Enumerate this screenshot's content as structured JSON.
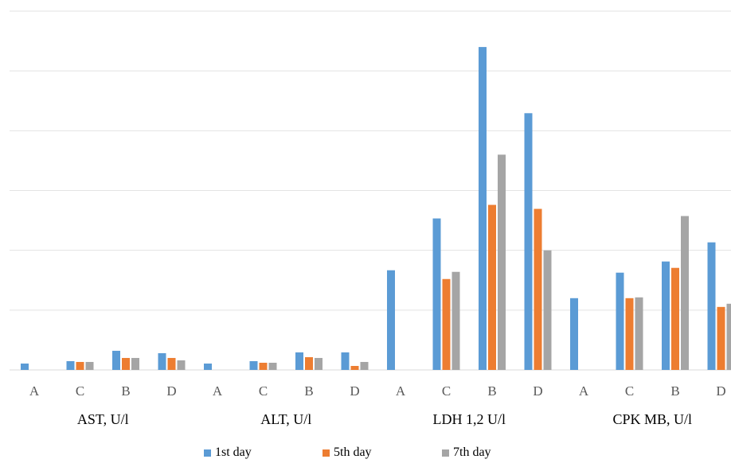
{
  "chart_data": {
    "type": "bar",
    "x": [
      "A",
      "C",
      "B",
      "D",
      "A",
      "C",
      "B",
      "D",
      "A",
      "C",
      "B",
      "D",
      "A",
      "C",
      "B",
      "D"
    ],
    "groups": [
      "AST, U/l",
      "ALT, U/l",
      "LDH 1,2 U/l",
      "CPK MB, U/l"
    ],
    "series": [
      {
        "name": "1st day",
        "color": "#5B9BD5",
        "values": [
          8,
          11,
          24,
          21,
          8,
          11,
          22,
          22,
          125,
          190,
          405,
          322,
          90,
          122,
          136,
          160
        ]
      },
      {
        "name": "5th day",
        "color": "#ED7D31",
        "values": [
          0,
          10,
          15,
          15,
          0,
          9,
          16,
          5,
          0,
          114,
          207,
          202,
          0,
          90,
          128,
          79
        ]
      },
      {
        "name": "7th day",
        "color": "#A5A5A5",
        "values": [
          0,
          10,
          15,
          12,
          0,
          9,
          15,
          10,
          0,
          123,
          270,
          150,
          0,
          91,
          193,
          83
        ]
      }
    ],
    "ylim": [
      0,
      450
    ],
    "yticks": [
      0,
      75,
      150,
      225,
      300,
      375,
      450
    ],
    "grid": true,
    "legend_position": "bottom"
  }
}
